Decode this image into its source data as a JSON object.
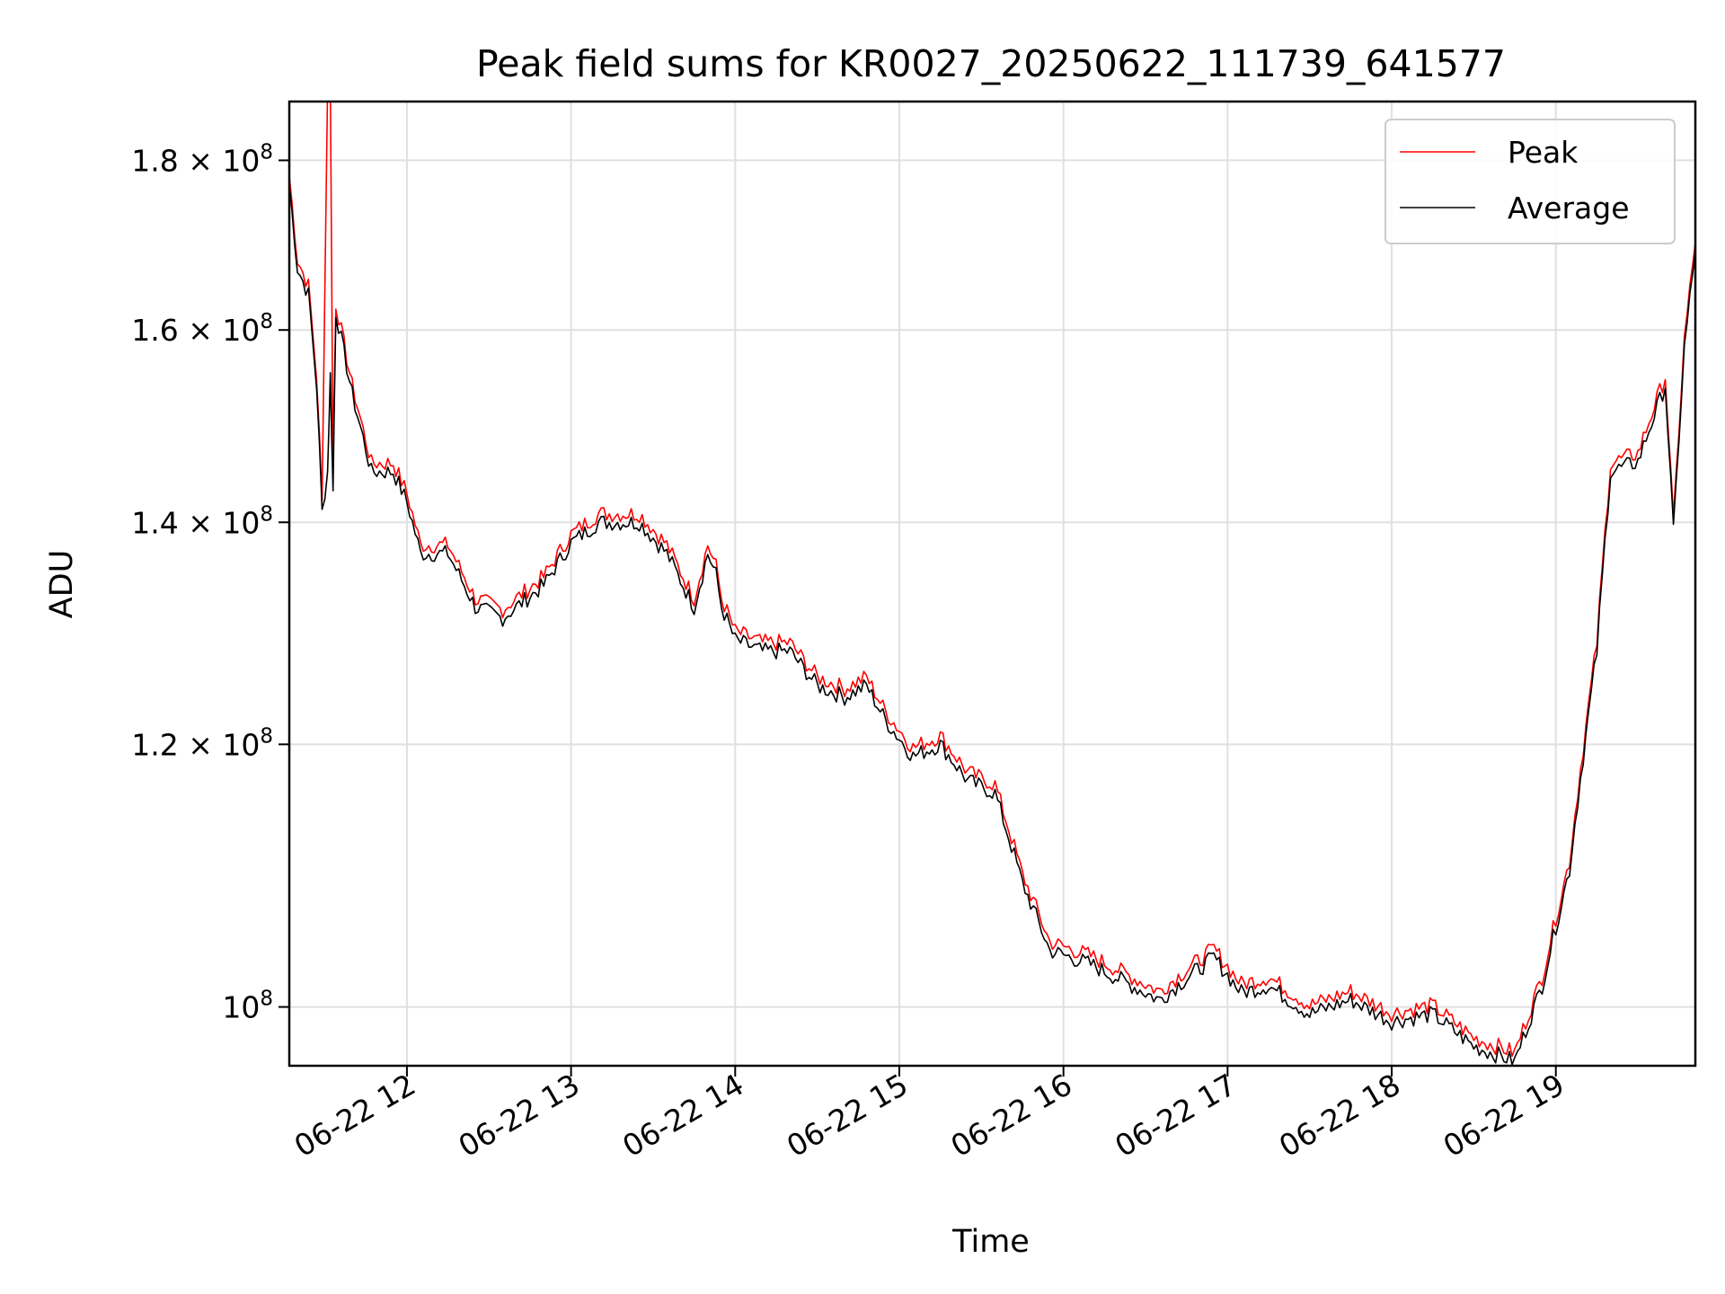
{
  "chart_data": {
    "type": "line",
    "title": "Peak field sums for KR0027_20250622_111739_641577",
    "xlabel": "Time",
    "ylabel": "ADU",
    "x_ticks": [
      {
        "value": "2025-06-22T12:00",
        "label": "06-22 12"
      },
      {
        "value": "2025-06-22T13:00",
        "label": "06-22 13"
      },
      {
        "value": "2025-06-22T14:00",
        "label": "06-22 14"
      },
      {
        "value": "2025-06-22T15:00",
        "label": "06-22 15"
      },
      {
        "value": "2025-06-22T16:00",
        "label": "06-22 16"
      },
      {
        "value": "2025-06-22T17:00",
        "label": "06-22 17"
      },
      {
        "value": "2025-06-22T18:00",
        "label": "06-22 18"
      },
      {
        "value": "2025-06-22T19:00",
        "label": "06-22 19"
      }
    ],
    "y_ticks": [
      {
        "value": 100000000,
        "base": "10",
        "exp": "8",
        "mantissa": ""
      },
      {
        "value": 120000000,
        "base": "1.2 × 10",
        "exp": "8",
        "mantissa": "1.2"
      },
      {
        "value": 140000000,
        "base": "1.4 × 10",
        "exp": "8",
        "mantissa": "1.4"
      },
      {
        "value": 160000000,
        "base": "1.6 × 10",
        "exp": "8",
        "mantissa": "1.6"
      },
      {
        "value": 180000000,
        "base": "1.8 × 10",
        "exp": "8",
        "mantissa": "1.8"
      }
    ],
    "xlim": [
      "2025-06-22T11:17",
      "2025-06-22T19:51"
    ],
    "ylim": [
      96000000,
      187500000
    ],
    "yscale": "log",
    "grid": true,
    "legend": {
      "position": "top-right"
    },
    "series": [
      {
        "name": "Peak",
        "color": "#ff0000",
        "offset_ratio": 1.006,
        "points": [
          [
            "2025-06-22T11:17",
            177000000
          ],
          [
            "2025-06-22T11:20",
            167000000
          ],
          [
            "2025-06-22T11:24",
            164000000
          ],
          [
            "2025-06-22T11:27",
            154000000
          ],
          [
            "2025-06-22T11:29",
            141000000
          ],
          [
            "2025-06-22T11:31",
            188000000
          ],
          [
            "2025-06-22T11:32",
            188000000
          ],
          [
            "2025-06-22T11:33",
            144000000
          ],
          [
            "2025-06-22T11:34",
            162000000
          ],
          [
            "2025-06-22T11:40",
            153000000
          ],
          [
            "2025-06-22T11:47",
            145000000
          ],
          [
            "2025-06-22T11:55",
            145000000
          ],
          [
            "2025-06-22T12:00",
            142000000
          ],
          [
            "2025-06-22T12:05",
            137000000
          ],
          [
            "2025-06-22T12:15",
            137000000
          ],
          [
            "2025-06-22T12:25",
            132000000
          ],
          [
            "2025-06-22T12:35",
            131000000
          ],
          [
            "2025-06-22T12:50",
            134000000
          ],
          [
            "2025-06-22T13:00",
            138000000
          ],
          [
            "2025-06-22T13:10",
            140000000
          ],
          [
            "2025-06-22T13:25",
            140000000
          ],
          [
            "2025-06-22T13:35",
            137000000
          ],
          [
            "2025-06-22T13:45",
            132000000
          ],
          [
            "2025-06-22T13:55",
            132000000
          ],
          [
            "2025-06-22T13:50",
            137000000
          ],
          [
            "2025-06-22T13:53",
            135000000
          ],
          [
            "2025-06-22T14:00",
            129000000
          ],
          [
            "2025-06-22T14:10",
            128000000
          ],
          [
            "2025-06-22T14:20",
            128000000
          ],
          [
            "2025-06-22T14:30",
            125000000
          ],
          [
            "2025-06-22T14:40",
            124000000
          ],
          [
            "2025-06-22T14:48",
            125000000
          ],
          [
            "2025-06-22T14:55",
            122000000
          ],
          [
            "2025-06-22T15:05",
            119000000
          ],
          [
            "2025-06-22T15:15",
            120000000
          ],
          [
            "2025-06-22T15:25",
            117000000
          ],
          [
            "2025-06-22T15:35",
            116000000
          ],
          [
            "2025-06-22T15:45",
            109000000
          ],
          [
            "2025-06-22T15:55",
            104000000
          ],
          [
            "2025-06-22T16:10",
            103000000
          ],
          [
            "2025-06-22T16:25",
            101500000
          ],
          [
            "2025-06-22T16:35",
            100500000
          ],
          [
            "2025-06-22T16:45",
            102000000
          ],
          [
            "2025-06-22T16:55",
            103500000
          ],
          [
            "2025-06-22T17:05",
            101000000
          ],
          [
            "2025-06-22T17:15",
            101500000
          ],
          [
            "2025-06-22T17:30",
            99500000
          ],
          [
            "2025-06-22T17:45",
            100500000
          ],
          [
            "2025-06-22T18:00",
            99000000
          ],
          [
            "2025-06-22T18:15",
            99500000
          ],
          [
            "2025-06-22T18:30",
            97300000
          ],
          [
            "2025-06-22T18:45",
            96300000
          ],
          [
            "2025-06-22T18:55",
            101500000
          ],
          [
            "2025-06-22T19:05",
            110000000
          ],
          [
            "2025-06-22T19:15",
            128000000
          ],
          [
            "2025-06-22T19:20",
            145000000
          ],
          [
            "2025-06-22T19:30",
            146000000
          ],
          [
            "2025-06-22T19:40",
            154000000
          ],
          [
            "2025-06-22T19:43",
            139000000
          ],
          [
            "2025-06-22T19:47",
            158000000
          ],
          [
            "2025-06-22T19:51",
            169000000
          ]
        ]
      },
      {
        "name": "Average",
        "color": "#000000",
        "offset_ratio": 1.0,
        "points": [
          [
            "2025-06-22T11:17",
            177000000
          ],
          [
            "2025-06-22T11:20",
            167000000
          ],
          [
            "2025-06-22T11:24",
            164000000
          ],
          [
            "2025-06-22T11:27",
            154000000
          ],
          [
            "2025-06-22T11:29",
            141000000
          ],
          [
            "2025-06-22T11:31",
            145000000
          ],
          [
            "2025-06-22T11:32",
            155000000
          ],
          [
            "2025-06-22T11:33",
            143000000
          ],
          [
            "2025-06-22T11:34",
            162000000
          ],
          [
            "2025-06-22T11:40",
            153000000
          ],
          [
            "2025-06-22T11:47",
            145000000
          ],
          [
            "2025-06-22T11:55",
            145000000
          ],
          [
            "2025-06-22T12:00",
            142000000
          ],
          [
            "2025-06-22T12:05",
            137000000
          ],
          [
            "2025-06-22T12:15",
            137000000
          ],
          [
            "2025-06-22T12:25",
            132000000
          ],
          [
            "2025-06-22T12:35",
            131000000
          ],
          [
            "2025-06-22T12:50",
            134000000
          ],
          [
            "2025-06-22T13:00",
            138000000
          ],
          [
            "2025-06-22T13:10",
            140000000
          ],
          [
            "2025-06-22T13:25",
            140000000
          ],
          [
            "2025-06-22T13:35",
            137000000
          ],
          [
            "2025-06-22T13:45",
            132000000
          ],
          [
            "2025-06-22T13:55",
            132000000
          ],
          [
            "2025-06-22T13:50",
            137000000
          ],
          [
            "2025-06-22T13:53",
            135000000
          ],
          [
            "2025-06-22T14:00",
            129000000
          ],
          [
            "2025-06-22T14:10",
            128000000
          ],
          [
            "2025-06-22T14:20",
            128000000
          ],
          [
            "2025-06-22T14:30",
            125000000
          ],
          [
            "2025-06-22T14:40",
            124000000
          ],
          [
            "2025-06-22T14:48",
            125000000
          ],
          [
            "2025-06-22T14:55",
            122000000
          ],
          [
            "2025-06-22T15:05",
            119000000
          ],
          [
            "2025-06-22T15:15",
            120000000
          ],
          [
            "2025-06-22T15:25",
            117000000
          ],
          [
            "2025-06-22T15:35",
            116000000
          ],
          [
            "2025-06-22T15:45",
            109000000
          ],
          [
            "2025-06-22T15:55",
            104000000
          ],
          [
            "2025-06-22T16:10",
            103000000
          ],
          [
            "2025-06-22T16:25",
            101500000
          ],
          [
            "2025-06-22T16:35",
            100500000
          ],
          [
            "2025-06-22T16:45",
            102000000
          ],
          [
            "2025-06-22T16:55",
            103500000
          ],
          [
            "2025-06-22T17:05",
            101000000
          ],
          [
            "2025-06-22T17:15",
            101500000
          ],
          [
            "2025-06-22T17:30",
            99500000
          ],
          [
            "2025-06-22T17:45",
            100500000
          ],
          [
            "2025-06-22T18:00",
            99000000
          ],
          [
            "2025-06-22T18:15",
            99500000
          ],
          [
            "2025-06-22T18:30",
            97300000
          ],
          [
            "2025-06-22T18:45",
            96300000
          ],
          [
            "2025-06-22T18:55",
            101500000
          ],
          [
            "2025-06-22T19:05",
            110000000
          ],
          [
            "2025-06-22T19:15",
            128000000
          ],
          [
            "2025-06-22T19:20",
            145000000
          ],
          [
            "2025-06-22T19:30",
            146000000
          ],
          [
            "2025-06-22T19:40",
            154000000
          ],
          [
            "2025-06-22T19:43",
            139000000
          ],
          [
            "2025-06-22T19:47",
            158000000
          ],
          [
            "2025-06-22T19:51",
            169000000
          ]
        ]
      }
    ]
  }
}
